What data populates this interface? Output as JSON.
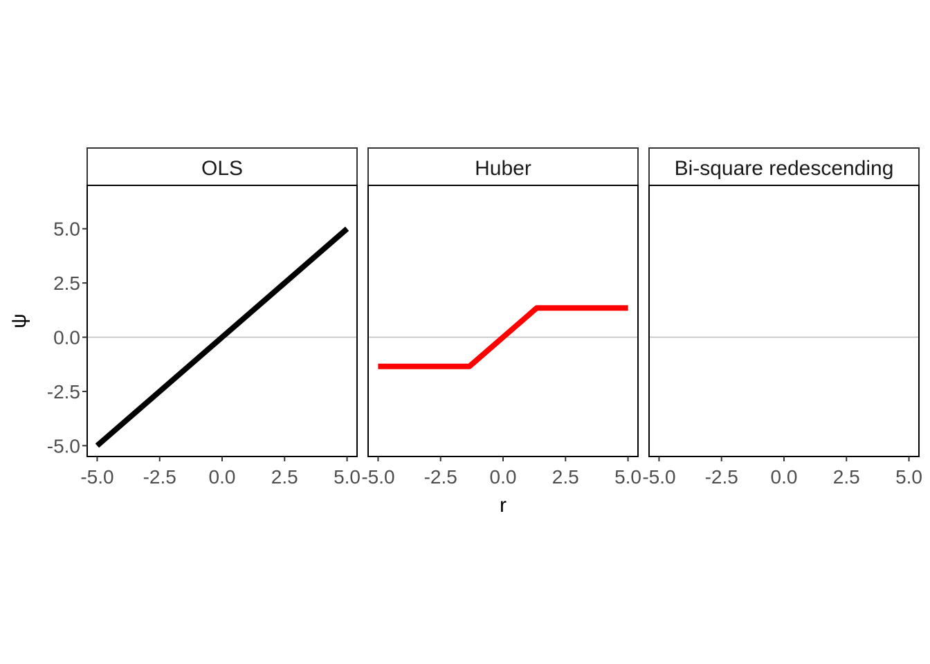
{
  "chart_data": {
    "type": "line",
    "xlabel": "r",
    "ylabel": "ψ",
    "xlim": [
      -5.4,
      5.4
    ],
    "ylim": [
      -5.5,
      7.0
    ],
    "x_ticks": [
      -5.0,
      -2.5,
      0.0,
      2.5,
      5.0
    ],
    "x_tick_labels": [
      "-5.0",
      "-2.5",
      "0.0",
      "2.5",
      "5.0"
    ],
    "y_ticks": [
      -5.0,
      -2.5,
      0.0,
      2.5,
      5.0
    ],
    "y_tick_labels": [
      "-5.0",
      "-2.5",
      "0.0",
      "2.5",
      "5.0"
    ],
    "reference_line_y": 0,
    "reference_line_color": "#bdbdbd",
    "grid": false,
    "legend": "none",
    "panels": [
      {
        "strip_label": "OLS",
        "color": "#000000",
        "x": [
          -5.0,
          5.0
        ],
        "y": [
          -5.0,
          5.0
        ]
      },
      {
        "strip_label": "Huber",
        "color": "#ff0000",
        "x": [
          -5.0,
          -1.345,
          1.345,
          5.0
        ],
        "y": [
          -1.345,
          -1.345,
          1.345,
          1.345
        ]
      },
      {
        "strip_label": "Bi-square redescending",
        "color": "#0000ff",
        "x": [],
        "y": []
      }
    ]
  }
}
